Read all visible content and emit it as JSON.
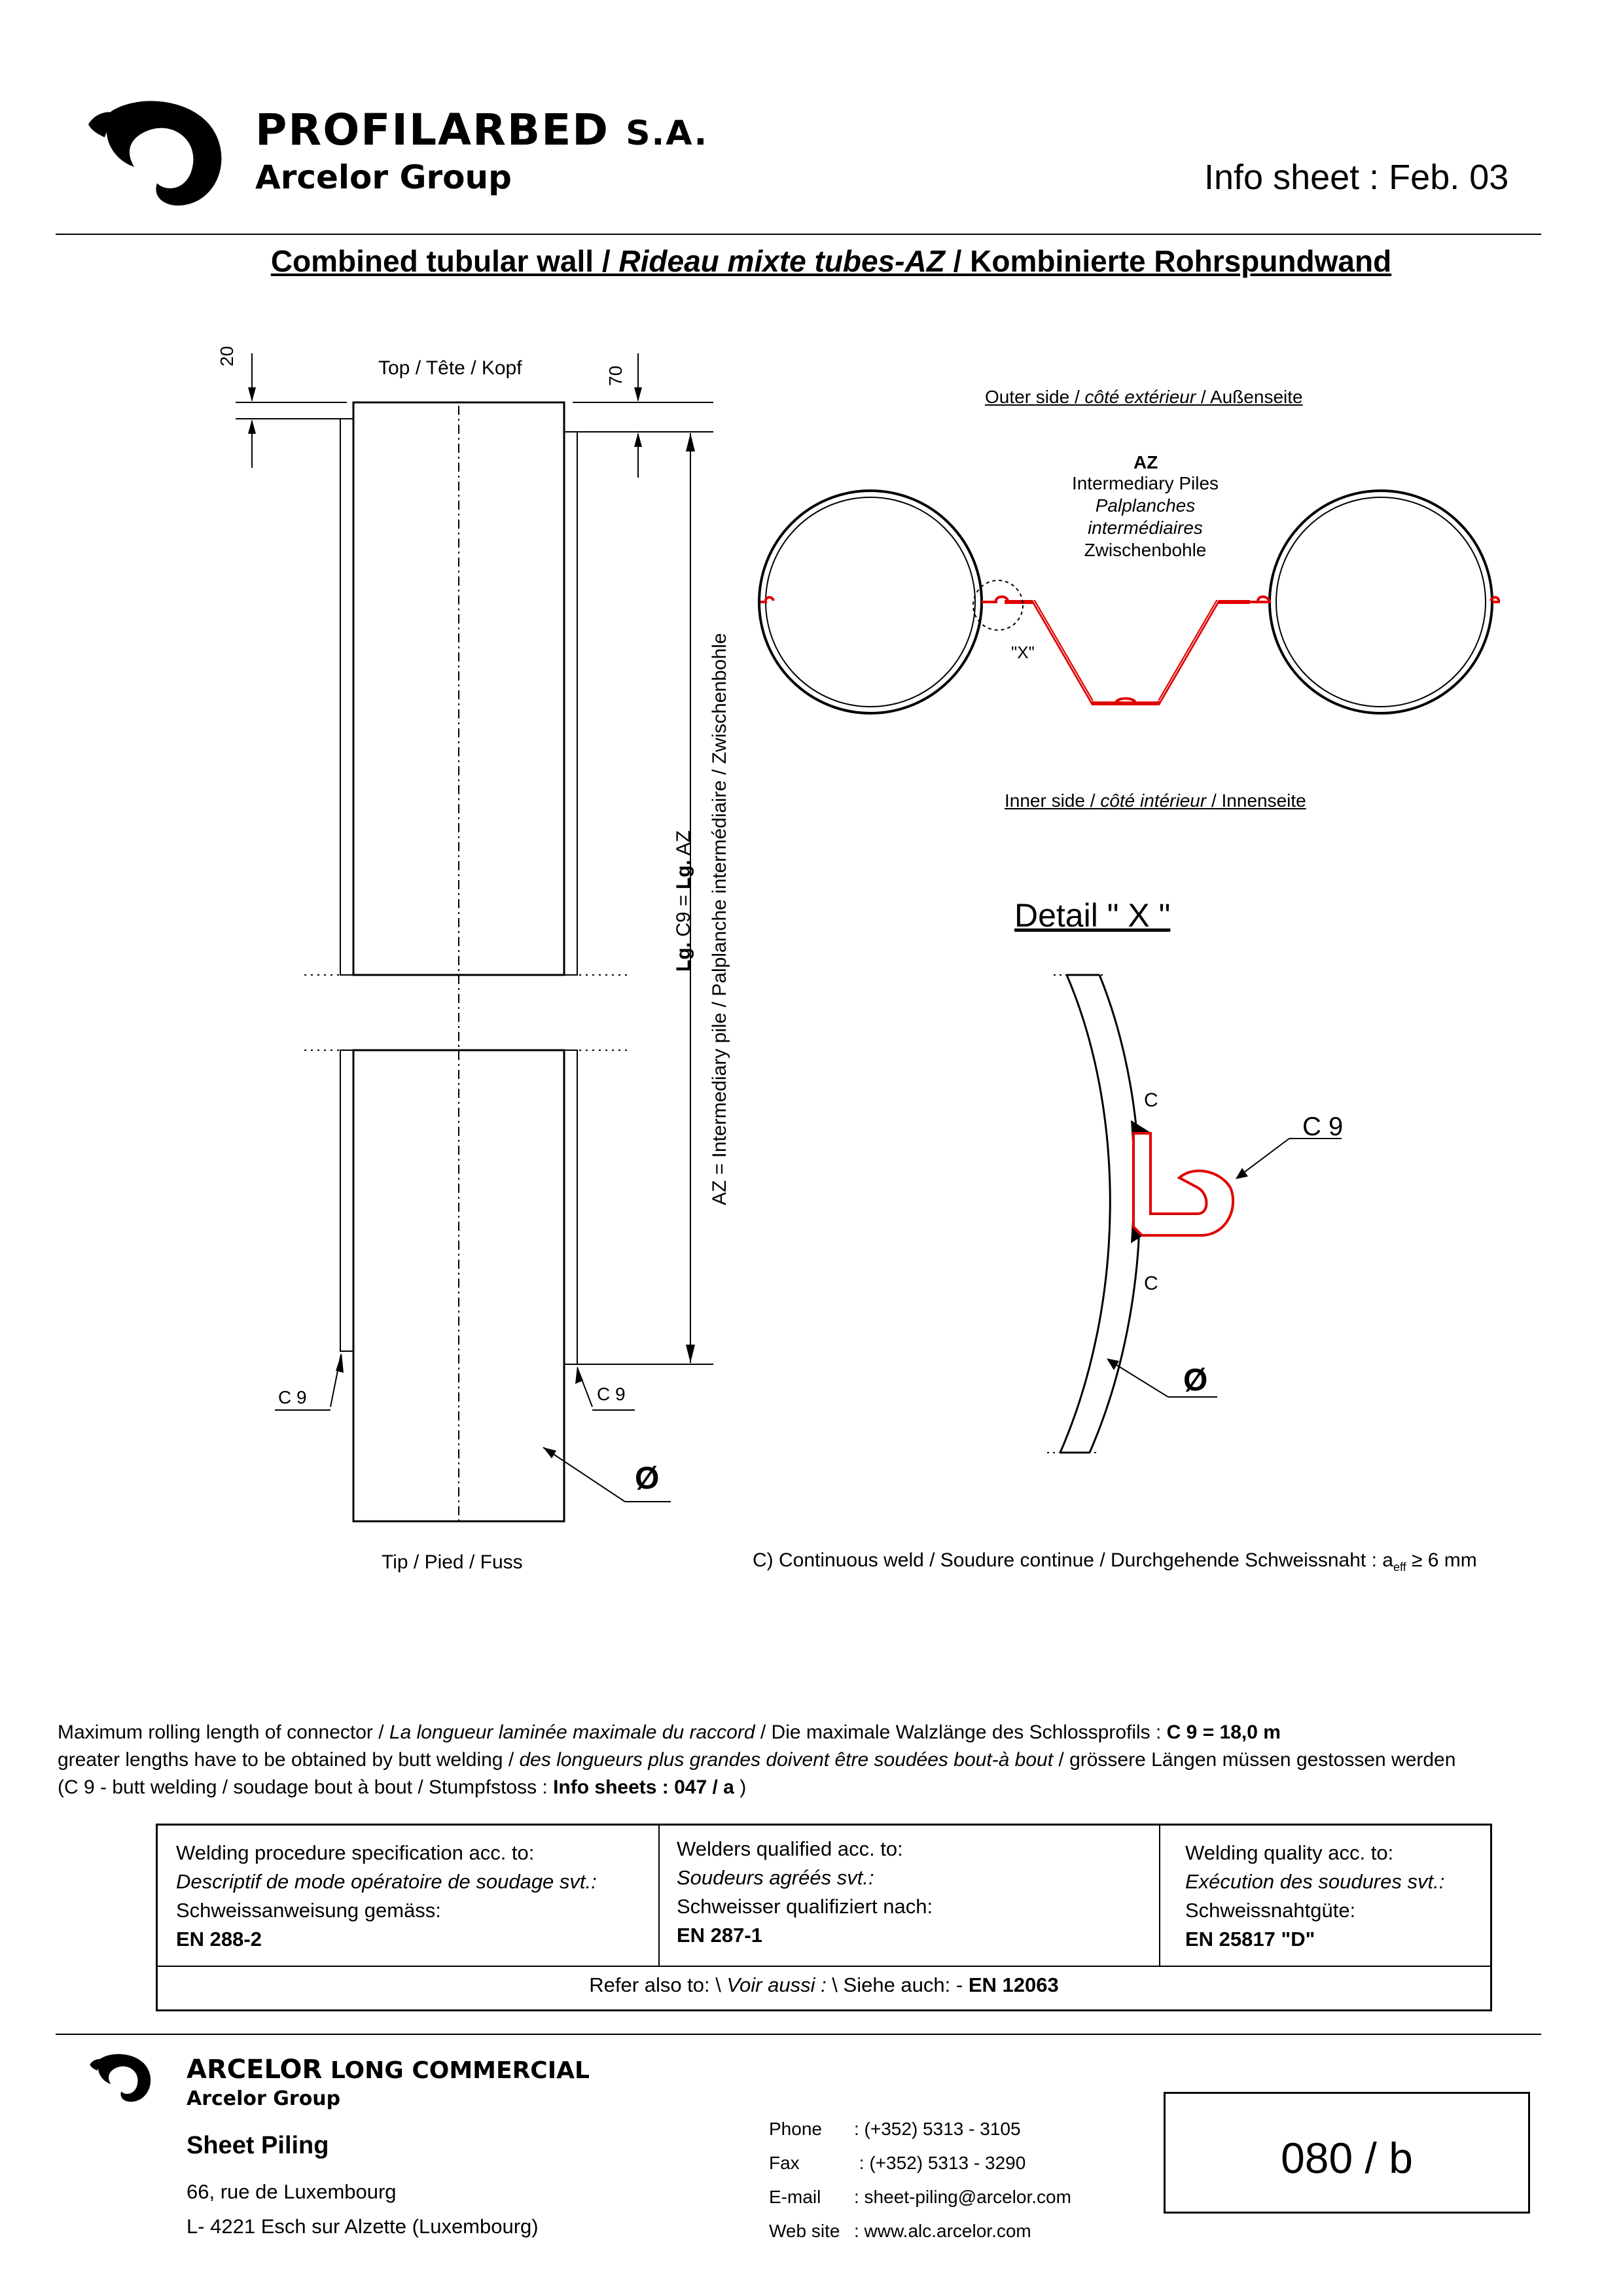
{
  "header": {
    "company": "PROFILARBED",
    "company_suffix": "S.A.",
    "group": "Arcelor Group",
    "info_sheet": "Info sheet : Feb. 03"
  },
  "title": {
    "en": "Combined tubular wall",
    "sep1": " / ",
    "fr": "Rideau mixte tubes-AZ",
    "sep2": " / ",
    "de": "Kombinierte Rohrspundwand"
  },
  "elevation": {
    "top_label": "Top / Tête / Kopf",
    "tip_label": "Tip / Pied / Fuss",
    "dim_20": "20",
    "dim_70": "70",
    "length_label_a": "Lg.",
    "length_label_b": " C9 = ",
    "length_label_c": "Lg.",
    "length_label_d": " AZ",
    "az_label": "AZ = Intermediary pile / Palplanche intermédiaire / Zwischenbohle",
    "c9_left": "C 9",
    "c9_right": "C 9",
    "diameter": "Ø"
  },
  "plan": {
    "outer_a": "Outer side / ",
    "outer_b": "côté extérieur",
    "outer_c": " / Außenseite",
    "az_title": "AZ",
    "az_l1": "Intermediary Piles",
    "az_l2": "Palplanches",
    "az_l3": "intermédiaires",
    "az_l4": "Zwischenbohle",
    "x_mark": "\"X\"",
    "inner_a": "Inner side / ",
    "inner_b": "côté intérieur",
    "inner_c": " / Innenseite"
  },
  "detail": {
    "title": "Detail \" X \"",
    "c_top": "C",
    "c_bottom": "C",
    "c9": "C 9",
    "diameter": "Ø"
  },
  "weld_note": {
    "text": "C) Continuous weld / Soudure continue / Durchgehende Schweissnaht : a",
    "sub": "eff",
    "tail": " ≥ 6 mm"
  },
  "notes": {
    "l1_a": "Maximum rolling length of connector  / ",
    "l1_b": "La longueur laminée maximale du raccord",
    "l1_c": "  /  Die maximale Walzlänge des Schlossprofils :  ",
    "l1_d": "C 9 = 18,0 m",
    "l2_a": "greater lengths have to be obtained by butt welding / ",
    "l2_b": "des longueurs plus grandes doivent être soudées bout-à bout",
    "l2_c": " / grössere Längen müssen gestossen werden",
    "l3_a": "(C 9 - butt welding / soudage bout à bout / Stumpfstoss  :  ",
    "l3_b": "Info sheets : 047 / a",
    "l3_c": " )"
  },
  "table": {
    "col1": {
      "l1": "Welding procedure specification acc. to:",
      "l2": "Descriptif de mode opératoire de soudage svt.:",
      "l3": "Schweissanweisung gemäss:",
      "l4": "EN 288-2"
    },
    "col2": {
      "l1": "Welders qualified acc. to:",
      "l2": "Soudeurs agréés svt.:",
      "l3": "Schweisser qualifiziert nach:",
      "l4": "EN 287-1"
    },
    "col3": {
      "l1": "Welding quality acc. to:",
      "l2": "Exécution des soudures svt.:",
      "l3": "Schweissnahtgüte:",
      "l4": "EN 25817 \"D\""
    },
    "refer_a": "Refer also to: \\ ",
    "refer_b": "Voir aussi :",
    "refer_c": " \\ Siehe auch:  - ",
    "refer_d": "EN 12063"
  },
  "footer": {
    "company_a": "ARCELOR",
    "company_b": " LONG COMMERCIAL",
    "group": "Arcelor Group",
    "dept": "Sheet Piling",
    "addr1": "66, rue de Luxembourg",
    "addr2": "L- 4221 Esch sur Alzette (Luxembourg)",
    "contacts": [
      {
        "label": "Phone",
        "value": ": (+352) 5313 - 3105"
      },
      {
        "label": "Fax",
        "value": "  : (+352) 5313 - 3290"
      },
      {
        "label": "E-mail",
        "value": ": sheet-piling@arcelor.com"
      },
      {
        "label": "Web site",
        "value": ": www.alc.arcelor.com"
      }
    ],
    "sheet_no": "080 / b"
  },
  "colors": {
    "connector": "#e00000",
    "line": "#000000"
  }
}
